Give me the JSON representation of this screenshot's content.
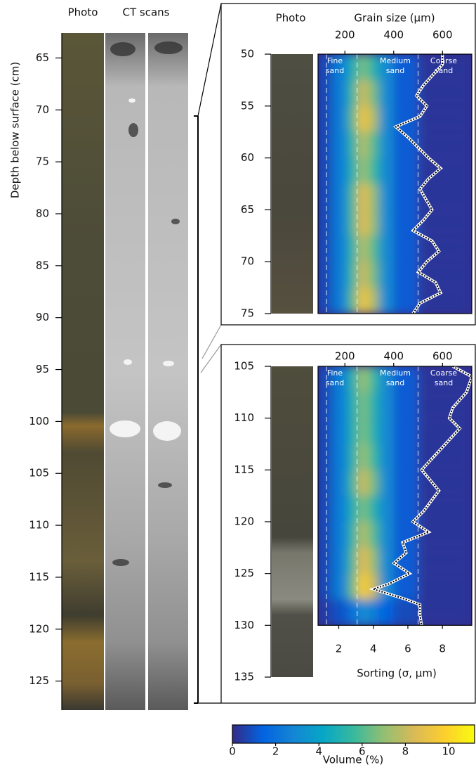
{
  "chart_data": [
    {
      "type": "core",
      "columns": [
        "Photo",
        "CT scans"
      ],
      "ylabel": "Depth below surface (cm)",
      "ylim": [
        62.6,
        127.8
      ],
      "yticks": [
        65,
        70,
        75,
        80,
        85,
        90,
        95,
        100,
        105,
        110,
        115,
        120,
        125
      ]
    },
    {
      "type": "heatmap",
      "photo_label": "Photo",
      "xlabel": "Grain size (µm)",
      "xlim": [
        90,
        720
      ],
      "xticks": [
        200,
        400,
        600
      ],
      "x2lim": [
        0.8,
        9.7
      ],
      "ylim": [
        50,
        75
      ],
      "yticks": [
        50,
        55,
        60,
        65,
        70,
        75
      ],
      "class_bounds": [
        125,
        250,
        500
      ],
      "class_labels": [
        [
          "Fine",
          "sand"
        ],
        [
          "Medium",
          "sand"
        ],
        [
          "Coarse",
          "sand"
        ]
      ],
      "grain_bins": [
        90,
        150,
        210,
        250,
        300,
        340,
        400,
        500,
        720
      ],
      "depth_bins": [
        50,
        52.5,
        55,
        57.5,
        60,
        62.5,
        65,
        67.5,
        70,
        72.5,
        75
      ],
      "volume": [
        [
          0.8,
          2.5,
          4.8,
          6.5,
          5,
          3,
          1.2,
          0.3
        ],
        [
          0.8,
          2.5,
          5.5,
          8,
          6.5,
          3,
          1.2,
          0.3
        ],
        [
          0.8,
          2.5,
          6,
          9,
          7.5,
          3,
          1.2,
          0.3
        ],
        [
          0.8,
          2.5,
          5.3,
          7.5,
          6,
          3,
          1.2,
          0.3
        ],
        [
          0.8,
          2.5,
          5,
          7,
          5.5,
          3,
          1.2,
          0.3
        ],
        [
          0.8,
          2.5,
          5.8,
          8.5,
          7,
          3,
          1.2,
          0.3
        ],
        [
          0.8,
          2.5,
          5.8,
          8.5,
          7,
          3,
          1.2,
          0.3
        ],
        [
          0.8,
          2.5,
          5.3,
          7.5,
          6,
          3,
          1.2,
          0.3
        ],
        [
          0.8,
          2.5,
          5.5,
          8,
          6.5,
          3,
          1.2,
          0.3
        ],
        [
          0.8,
          2.5,
          6,
          9,
          7.5,
          3,
          1.2,
          0.3
        ]
      ],
      "sorting": {
        "depth": [
          50,
          51,
          53,
          54,
          55,
          56,
          57,
          58,
          60,
          61,
          62,
          63,
          65,
          66,
          67,
          68,
          69,
          70,
          71,
          72,
          73,
          74,
          75
        ],
        "values": [
          8.0,
          8.0,
          6.9,
          6.5,
          7.1,
          6.7,
          5.3,
          6.0,
          7.2,
          7.9,
          7.2,
          6.7,
          7.4,
          6.9,
          6.3,
          7.4,
          7.8,
          7.1,
          6.6,
          7.6,
          7.9,
          6.7,
          6.3
        ]
      }
    },
    {
      "type": "heatmap",
      "xlim": [
        90,
        720
      ],
      "xticks": [
        200,
        400,
        600
      ],
      "x2label": "Sorting (σ, µm)",
      "x2lim": [
        0.8,
        9.7
      ],
      "x2ticks": [
        2,
        4,
        6,
        8
      ],
      "ylim": [
        105,
        135
      ],
      "yticks": [
        105,
        110,
        115,
        120,
        125,
        130,
        135
      ],
      "class_bounds": [
        125,
        250,
        500
      ],
      "class_labels": [
        [
          "Fine",
          "sand"
        ],
        [
          "Medium",
          "sand"
        ],
        [
          "Coarse",
          "sand"
        ]
      ],
      "grain_bins": [
        90,
        150,
        210,
        250,
        300,
        340,
        400,
        500,
        720
      ],
      "depth_bins": [
        105,
        107.5,
        110,
        112.5,
        115,
        117.5,
        120,
        122.5,
        125,
        127.5,
        130
      ],
      "volume": [
        [
          0.8,
          2.5,
          5,
          7,
          5.5,
          3,
          1.2,
          0.3
        ],
        [
          0.8,
          2.5,
          4.8,
          6.5,
          5,
          3,
          1.2,
          0.3
        ],
        [
          0.8,
          2.5,
          4.8,
          6.5,
          5,
          3,
          1.2,
          0.3
        ],
        [
          0.8,
          2.5,
          5,
          7,
          5.5,
          3,
          1.2,
          0.3
        ],
        [
          0.8,
          2.5,
          5.5,
          8,
          6.5,
          3,
          1.2,
          0.3
        ],
        [
          0.8,
          2.5,
          4.8,
          6.5,
          5,
          3,
          1.2,
          0.3
        ],
        [
          0.8,
          2.5,
          5.3,
          7.5,
          6,
          3,
          1.2,
          0.3
        ],
        [
          0.8,
          2.5,
          5.8,
          8.5,
          7,
          3,
          1.2,
          0.3
        ],
        [
          0.8,
          2.5,
          6.3,
          9.5,
          8,
          3,
          1.2,
          0.3
        ],
        [
          0.5,
          1,
          2,
          3,
          2.5,
          1.5,
          0.8,
          0.3
        ]
      ],
      "sorting": {
        "depth": [
          105,
          106,
          107.5,
          109,
          110,
          111,
          113,
          115,
          117,
          119,
          120,
          121,
          122,
          123,
          124,
          125,
          126,
          126.5,
          127.5,
          128,
          129,
          130
        ],
        "values": [
          8.6,
          9.7,
          9.4,
          8.6,
          8.4,
          9.0,
          7.9,
          6.8,
          7.8,
          6.9,
          6.3,
          7.2,
          5.7,
          5.9,
          5.2,
          6.1,
          4.9,
          4.0,
          5.9,
          6.7,
          6.7,
          6.8
        ]
      }
    },
    {
      "type": "colorbar",
      "xlabel": "Volume (%)",
      "xlim": [
        0,
        11.2
      ],
      "xticks": [
        0,
        2,
        4,
        6,
        8,
        10
      ],
      "colormap": [
        "#352a87",
        "#0363e1",
        "#1485d4",
        "#06a7c6",
        "#38b99e",
        "#92bf73",
        "#d9ba56",
        "#fcce2e",
        "#f9fb0e"
      ]
    }
  ]
}
